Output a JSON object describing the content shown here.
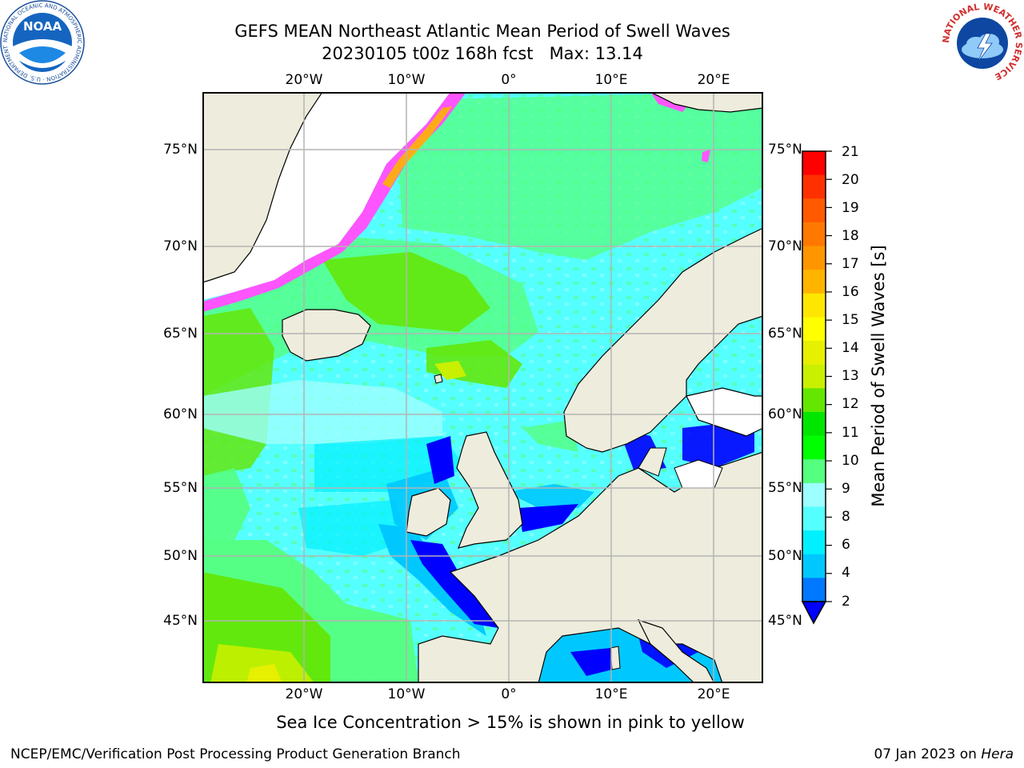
{
  "title": {
    "line1": "GEFS MEAN Northeast Atlantic Mean Period of Swell Waves",
    "line2": "20230105 t00z 168h fcst   Max: 13.14"
  },
  "map": {
    "lon_labels": [
      "20°W",
      "10°W",
      "0°",
      "10°E",
      "20°E"
    ],
    "lat_labels": [
      "75°N",
      "70°N",
      "65°N",
      "60°N",
      "55°N",
      "50°N",
      "45°N"
    ],
    "land_color": "#eeecdc",
    "grid_color": "#b4b4b4"
  },
  "colorbar": {
    "title": "Mean Period of Swell Waves [s]",
    "ticks": [
      "21",
      "20",
      "19",
      "18",
      "17",
      "16",
      "15",
      "14",
      "13",
      "12",
      "11",
      "10",
      "9",
      "8",
      "6",
      "4",
      "2"
    ],
    "colors": [
      "#ff0000",
      "#ff3000",
      "#ff5a00",
      "#ff7800",
      "#ff9600",
      "#ffb400",
      "#ffe600",
      "#ffff00",
      "#e6f000",
      "#c8f000",
      "#64e600",
      "#00e600",
      "#00ff00",
      "#55ff80",
      "#9dffff",
      "#55ffff",
      "#00f0ff",
      "#00c8ff",
      "#0078ff"
    ],
    "under_color": "#0000ff"
  },
  "note": "Sea Ice Concentration > 15% is shown in pink to yellow",
  "footer": {
    "left": "NCEP/EMC/Verification Post Processing Product Generation Branch",
    "date": "07 Jan 2023 on",
    "machine": "Hera"
  },
  "logos": {
    "noaa_text": "NOAA",
    "noaa_ring": "NATIONAL OCEANIC AND ATMOSPHERIC ADMINISTRATION · U.S. DEPARTMENT OF COMMERCE",
    "nws_ring": "NATIONAL WEATHER SERVICE"
  }
}
